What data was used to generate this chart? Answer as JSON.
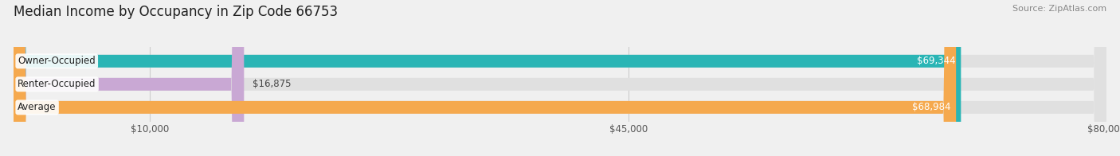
{
  "title": "Median Income by Occupancy in Zip Code 66753",
  "source": "Source: ZipAtlas.com",
  "categories": [
    "Owner-Occupied",
    "Renter-Occupied",
    "Average"
  ],
  "values": [
    69344,
    16875,
    68984
  ],
  "bar_colors": [
    "#2ab5b5",
    "#c9a8d4",
    "#f5a94e"
  ],
  "value_labels": [
    "$69,344",
    "$16,875",
    "$68,984"
  ],
  "xlim": [
    0,
    80000
  ],
  "xticks": [
    10000,
    45000,
    80000
  ],
  "xtick_labels": [
    "$10,000",
    "$45,000",
    "$80,000"
  ],
  "background_color": "#f0f0f0",
  "bar_background_color": "#e0e0e0",
  "title_fontsize": 12,
  "source_fontsize": 8,
  "label_fontsize": 8.5,
  "value_fontsize": 8.5,
  "bar_height": 0.55
}
